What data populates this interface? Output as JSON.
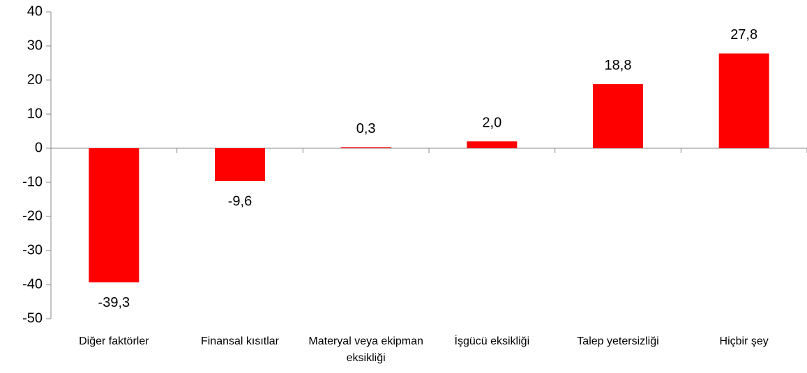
{
  "chart_data": {
    "type": "bar",
    "categories": [
      "Diğer faktörler",
      "Finansal kısıtlar",
      "Materyal veya ekipman eksikliği",
      "İşgücü eksikliği",
      "Talep yetersizliği",
      "Hiçbir şey"
    ],
    "values": [
      -39.3,
      -9.6,
      0.3,
      2.0,
      18.8,
      27.8
    ],
    "value_labels": [
      "-39,3",
      "-9,6",
      "0,3",
      "2,0",
      "18,8",
      "27,8"
    ],
    "color": "#ff0000",
    "ylim": [
      -50,
      40
    ],
    "yticks": [
      -50,
      -40,
      -30,
      -20,
      -10,
      0,
      10,
      20,
      30,
      40
    ],
    "grid": false
  }
}
